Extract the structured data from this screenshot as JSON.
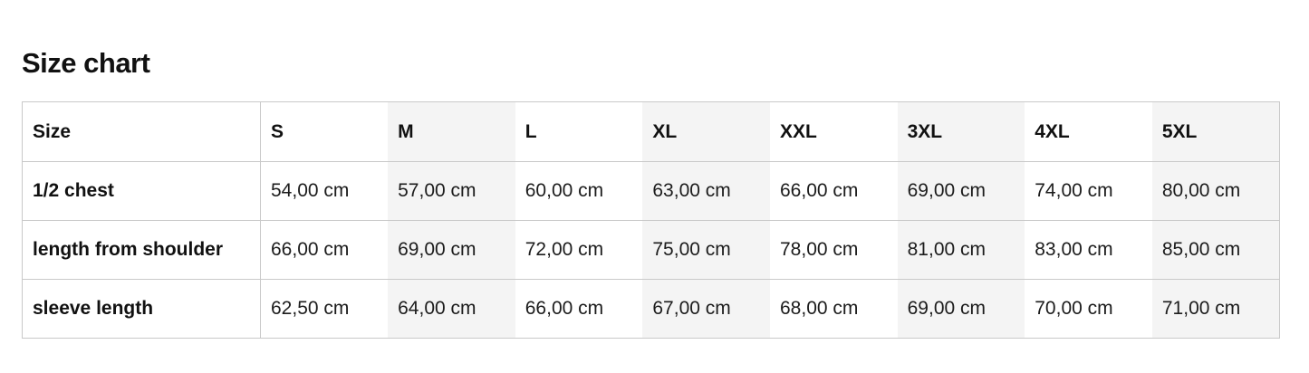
{
  "page": {
    "title": "Size chart"
  },
  "table": {
    "columns": [
      "Size",
      "S",
      "M",
      "L",
      "XL",
      "XXL",
      "3XL",
      "4XL",
      "5XL"
    ],
    "rows": [
      {
        "label": "1/2 chest",
        "values": [
          "54,00 cm",
          "57,00 cm",
          "60,00 cm",
          "63,00 cm",
          "66,00 cm",
          "69,00 cm",
          "74,00 cm",
          "80,00 cm"
        ]
      },
      {
        "label": "length from shoulder",
        "values": [
          "66,00 cm",
          "69,00 cm",
          "72,00 cm",
          "75,00 cm",
          "78,00 cm",
          "81,00 cm",
          "83,00 cm",
          "85,00 cm"
        ]
      },
      {
        "label": "sleeve length",
        "values": [
          "62,50 cm",
          "64,00 cm",
          "66,00 cm",
          "67,00 cm",
          "68,00 cm",
          "69,00 cm",
          "70,00 cm",
          "71,00 cm"
        ]
      }
    ],
    "unit": "cm",
    "colors": {
      "background": "#ffffff",
      "column_stripe": "#f4f4f4",
      "border": "#c9c9c9",
      "text": "#161616"
    }
  }
}
